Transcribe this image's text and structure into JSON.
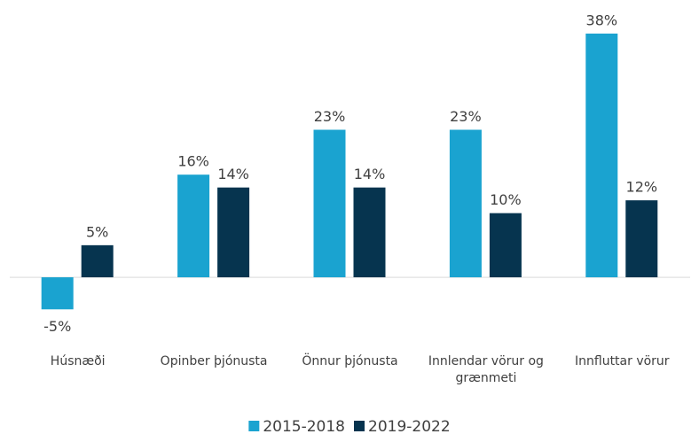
{
  "chart_data": {
    "type": "bar",
    "categories": [
      "Húsnæði",
      "Opinber þjónusta",
      "Önnur þjónusta",
      "Innlendar vörur og grænmeti",
      "Innfluttar vörur"
    ],
    "series": [
      {
        "name": "2015-2018",
        "color": "#1aa3d0",
        "values": [
          -5,
          16,
          23,
          23,
          38
        ],
        "value_labels": [
          "-5%",
          "16%",
          "23%",
          "23%",
          "38%"
        ]
      },
      {
        "name": "2019-2022",
        "color": "#06344f",
        "values": [
          5,
          14,
          14,
          10,
          12
        ],
        "value_labels": [
          "5%",
          "14%",
          "14%",
          "10%",
          "12%"
        ]
      }
    ],
    "ylim": [
      -8,
      40
    ],
    "legend": "bottom"
  }
}
